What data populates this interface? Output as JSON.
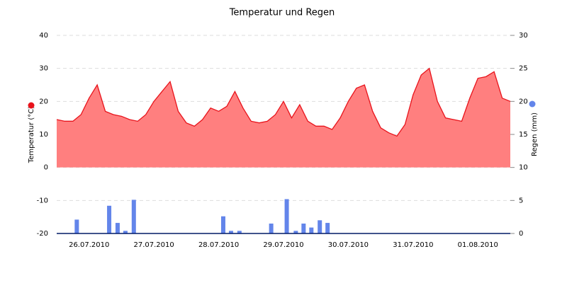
{
  "chart_data": {
    "type": "area-bar",
    "title": "Temperatur und Regen",
    "ylabel": "Temperatur (°C)",
    "y2label": "Regen (mm)",
    "xlim": [
      0,
      7
    ],
    "xticks": [
      {
        "value": 0.5,
        "label": "26.07.2010"
      },
      {
        "value": 1.5,
        "label": "27.07.2010"
      },
      {
        "value": 2.5,
        "label": "28.07.2010"
      },
      {
        "value": 3.5,
        "label": "29.07.2010"
      },
      {
        "value": 4.5,
        "label": "30.07.2010"
      },
      {
        "value": 5.5,
        "label": "31.07.2010"
      },
      {
        "value": 6.5,
        "label": "01.08.2010"
      }
    ],
    "ylim": [
      -20,
      40
    ],
    "yticks": [
      -20,
      -10,
      0,
      10,
      20,
      30,
      40
    ],
    "y2lim": [
      0,
      30
    ],
    "y2ticks": [
      0,
      5,
      10,
      15,
      20,
      25,
      30
    ],
    "grid": true,
    "series": [
      {
        "type": "area",
        "color": "#e8131b",
        "fill": "#ff7f7f",
        "x": [
          0,
          0.125,
          0.25,
          0.375,
          0.5,
          0.625,
          0.75,
          0.875,
          1,
          1.125,
          1.25,
          1.375,
          1.5,
          1.625,
          1.75,
          1.875,
          2,
          2.125,
          2.25,
          2.375,
          2.5,
          2.625,
          2.75,
          2.875,
          3,
          3.125,
          3.25,
          3.375,
          3.5,
          3.625,
          3.75,
          3.875,
          4,
          4.125,
          4.25,
          4.375,
          4.5,
          4.625,
          4.75,
          4.875,
          5,
          5.125,
          5.25,
          5.375,
          5.5,
          5.625,
          5.75,
          5.875,
          6,
          6.125,
          6.25,
          6.375,
          6.5,
          6.625,
          6.75,
          6.875,
          7
        ],
        "values": [
          14.5,
          14,
          14,
          16,
          21,
          25,
          17,
          16,
          15.5,
          14.5,
          14,
          16,
          20,
          23,
          26,
          17,
          13.5,
          12.5,
          14.5,
          18,
          17,
          18.5,
          23,
          18,
          14,
          13.5,
          14,
          16,
          20,
          15,
          19,
          14,
          12.5,
          12.5,
          11.5,
          15,
          20,
          24,
          25,
          17,
          12,
          10.5,
          9.5,
          13,
          22,
          28,
          30,
          20,
          15,
          14.5,
          14,
          21,
          27,
          27.5,
          29,
          21,
          20
        ]
      },
      {
        "type": "bar",
        "axis": "y2",
        "color": "#6385ea",
        "x": [
          0.31,
          0.81,
          0.94,
          1.06,
          1.19,
          2.57,
          2.69,
          2.82,
          3.31,
          3.55,
          3.69,
          3.81,
          3.93,
          4.06,
          4.18
        ],
        "values": [
          2.1,
          4.2,
          1.6,
          0.4,
          5.1,
          2.6,
          0.4,
          0.4,
          1.5,
          5.2,
          0.4,
          1.5,
          0.9,
          2.0,
          1.6
        ]
      }
    ]
  }
}
